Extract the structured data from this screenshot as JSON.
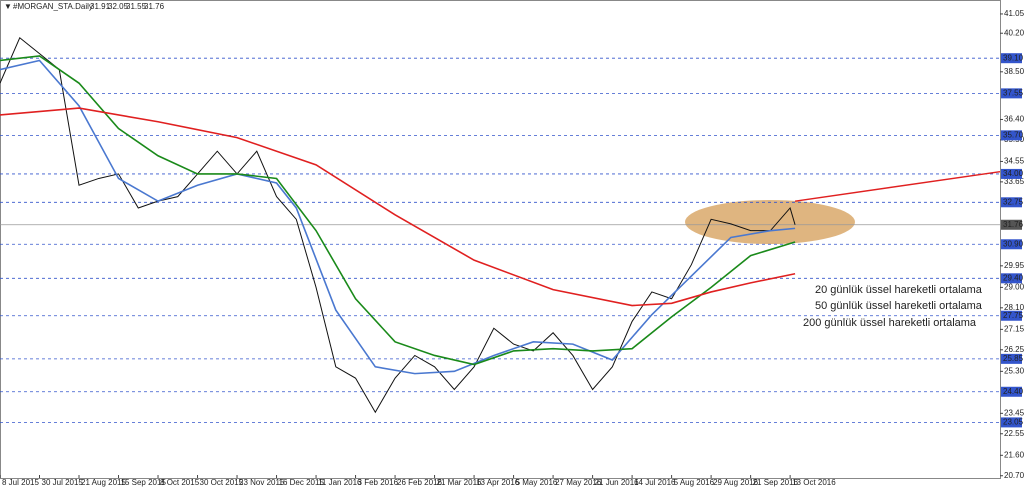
{
  "chart_data": {
    "type": "line",
    "title": "#MORGAN_STA.Daily",
    "ohlc": [
      31.91,
      32.05,
      31.55,
      31.76
    ],
    "current_price": 31.76,
    "xlim": [
      0,
      405
    ],
    "ylim": [
      20.6,
      41.4
    ],
    "xticks": [
      {
        "value": 0,
        "label": "8 Jul 2015"
      },
      {
        "value": 16,
        "label": "30 Jul 2015"
      },
      {
        "value": 32,
        "label": "21 Aug 2015"
      },
      {
        "value": 48,
        "label": "15 Sep 2015"
      },
      {
        "value": 64,
        "label": "8 Oct 2015"
      },
      {
        "value": 80,
        "label": "30 Oct 2015"
      },
      {
        "value": 96,
        "label": "23 Nov 2015"
      },
      {
        "value": 112,
        "label": "16 Dec 2015"
      },
      {
        "value": 128,
        "label": "11 Jan 2016"
      },
      {
        "value": 144,
        "label": "3 Feb 2016"
      },
      {
        "value": 160,
        "label": "26 Feb 2016"
      },
      {
        "value": 176,
        "label": "21 Mar 2016"
      },
      {
        "value": 192,
        "label": "13 Apr 2016"
      },
      {
        "value": 208,
        "label": "5 May 2016"
      },
      {
        "value": 224,
        "label": "27 May 2016"
      },
      {
        "value": 240,
        "label": "21 Jun 2016"
      },
      {
        "value": 256,
        "label": "14 Jul 2016"
      },
      {
        "value": 272,
        "label": "5 Aug 2016"
      },
      {
        "value": 288,
        "label": "29 Aug 2016"
      },
      {
        "value": 304,
        "label": "21 Sep 2016"
      },
      {
        "value": 320,
        "label": "13 Oct 2016"
      }
    ],
    "yticks": [
      {
        "value": 41.05,
        "label": "41.05"
      },
      {
        "value": 40.2,
        "label": "40.20"
      },
      {
        "value": 38.5,
        "label": "38.50"
      },
      {
        "value": 36.4,
        "label": "36.40"
      },
      {
        "value": 35.5,
        "label": "35.50"
      },
      {
        "value": 34.55,
        "label": "34.55"
      },
      {
        "value": 33.65,
        "label": "33.65"
      },
      {
        "value": 29.95,
        "label": "29.95"
      },
      {
        "value": 29,
        "label": "29.00"
      },
      {
        "value": 28.1,
        "label": "28.10"
      },
      {
        "value": 27.15,
        "label": "27.15"
      },
      {
        "value": 26.25,
        "label": "26.25"
      },
      {
        "value": 25.3,
        "label": "25.30"
      },
      {
        "value": 23.45,
        "label": "23.45"
      },
      {
        "value": 22.55,
        "label": "22.55"
      },
      {
        "value": 21.6,
        "label": "21.60"
      },
      {
        "value": 20.7,
        "label": "20.70"
      }
    ],
    "levels": [
      {
        "value": 39.1,
        "label": "39.10"
      },
      {
        "value": 37.55,
        "label": "37.55"
      },
      {
        "value": 35.7,
        "label": "35.70"
      },
      {
        "value": 34,
        "label": "34.00"
      },
      {
        "value": 32.75,
        "label": "32.75"
      },
      {
        "value": 30.9,
        "label": "30.90"
      },
      {
        "value": 29.4,
        "label": "29.40"
      },
      {
        "value": 27.75,
        "label": "27.75"
      },
      {
        "value": 25.85,
        "label": "25.85"
      },
      {
        "value": 24.4,
        "label": "24.40"
      },
      {
        "value": 23.05,
        "label": "23.05"
      }
    ],
    "level_color": "#3355cc",
    "series": [
      {
        "name": "Close",
        "color": "#111111",
        "x": [
          0,
          8,
          16,
          24,
          32,
          40,
          48,
          56,
          64,
          72,
          80,
          88,
          96,
          104,
          112,
          120,
          128,
          136,
          144,
          152,
          160,
          168,
          176,
          184,
          192,
          200,
          208,
          216,
          224,
          232,
          240,
          248,
          256,
          264,
          272,
          280,
          288,
          296,
          304,
          312,
          320,
          322
        ],
        "values": [
          38.0,
          40.0,
          39.3,
          38.6,
          33.5,
          33.8,
          34.0,
          32.5,
          32.8,
          33.0,
          34.0,
          35.0,
          34.0,
          35.0,
          33.0,
          32.0,
          29.0,
          25.5,
          25.0,
          23.5,
          25.0,
          26.0,
          25.5,
          24.5,
          25.5,
          27.2,
          26.5,
          26.2,
          27.0,
          26.0,
          24.5,
          25.5,
          27.5,
          28.8,
          28.5,
          30.0,
          32.0,
          31.8,
          31.5,
          31.5,
          32.5,
          31.76
        ]
      },
      {
        "name": "20 günlük üssel hareketli ortalama",
        "color": "#4a78d0",
        "x": [
          0,
          16,
          32,
          48,
          64,
          80,
          96,
          112,
          120,
          136,
          152,
          168,
          184,
          200,
          216,
          232,
          248,
          264,
          280,
          296,
          312,
          322
        ],
        "values": [
          38.6,
          39.0,
          37.0,
          33.8,
          32.8,
          33.5,
          34.0,
          33.6,
          32.5,
          28.0,
          25.5,
          25.2,
          25.3,
          26.0,
          26.6,
          26.5,
          25.8,
          27.8,
          29.5,
          31.2,
          31.5,
          31.6
        ]
      },
      {
        "name": "50 günlük üssel hareketli ortalama",
        "color": "#1a8a1a",
        "x": [
          0,
          16,
          32,
          48,
          64,
          80,
          96,
          112,
          128,
          144,
          160,
          176,
          192,
          208,
          224,
          240,
          256,
          272,
          288,
          304,
          322
        ],
        "values": [
          39.0,
          39.2,
          38.0,
          36.0,
          34.8,
          34.0,
          34.0,
          33.8,
          31.5,
          28.5,
          26.6,
          26.0,
          25.6,
          26.2,
          26.3,
          26.2,
          26.3,
          27.7,
          29.0,
          30.4,
          31.0
        ]
      },
      {
        "name": "200 günlük üssel hareketli ortalama",
        "color": "#e02020",
        "x": [
          0,
          32,
          64,
          96,
          128,
          160,
          192,
          224,
          256,
          272,
          288,
          304,
          322
        ],
        "values": [
          36.6,
          36.9,
          36.3,
          35.6,
          34.4,
          32.2,
          30.2,
          28.9,
          28.2,
          28.3,
          28.8,
          29.2,
          29.6
        ]
      }
    ],
    "trendline": {
      "color": "#e02020",
      "x": [
        322,
        405
      ],
      "values": [
        32.8,
        34.1
      ]
    }
  }
}
